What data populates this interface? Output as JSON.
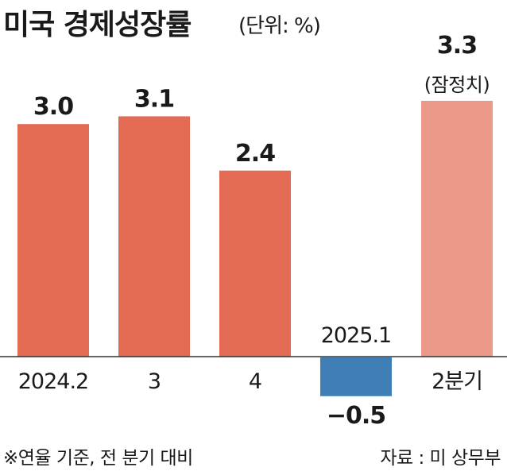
{
  "chart_data": {
    "type": "bar",
    "title": "미국 경제성장률",
    "unit": "(단위: %)",
    "categories": [
      "2024.2",
      "3",
      "4",
      "2025.1",
      "2분기"
    ],
    "values": [
      3.0,
      3.1,
      2.4,
      -0.5,
      3.3
    ],
    "value_labels": [
      "3.0",
      "3.1",
      "2.4",
      "−0.5",
      "3.3"
    ],
    "notes": [
      "",
      "",
      "",
      "",
      "(잠정치)"
    ],
    "colors": [
      "#e36b53",
      "#e36b53",
      "#e36b53",
      "#3f7fb6",
      "#ec998a"
    ],
    "grid": false,
    "legend": "none"
  },
  "footnote": "※연율 기준, 전 분기 대비",
  "source": "자료 : 미 상무부"
}
